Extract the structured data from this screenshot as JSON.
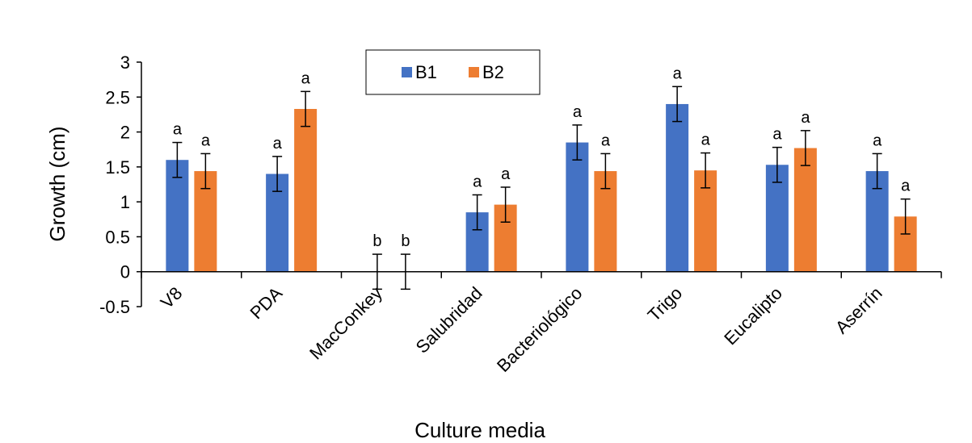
{
  "chart_data": {
    "type": "bar",
    "xlabel": "Culture media",
    "ylabel": "Growth (cm)",
    "ylim": [
      -0.5,
      3
    ],
    "yticks": [
      "3",
      "2.5",
      "2",
      "1.5",
      "1",
      "0.5",
      "0",
      "-0.5"
    ],
    "ytick_values": [
      3,
      2.5,
      2,
      1.5,
      1,
      0.5,
      0,
      -0.5
    ],
    "categories": [
      "V8",
      "PDA",
      "MacConkey",
      "Salubridad",
      "Bacteriológico",
      "Trigo",
      "Eucalipto",
      "Aserrín"
    ],
    "grid": false,
    "legend_position": "top-center",
    "series": [
      {
        "name": "B1",
        "color": "#4472C4",
        "values": [
          1.6,
          1.4,
          0,
          0.85,
          1.85,
          2.4,
          1.53,
          1.44
        ],
        "errors": [
          0.25,
          0.25,
          0.25,
          0.25,
          0.25,
          0.25,
          0.25,
          0.25
        ],
        "letters": [
          "a",
          "a",
          "b",
          "a",
          "a",
          "a",
          "a",
          "a"
        ]
      },
      {
        "name": "B2",
        "color": "#ED7D31",
        "values": [
          1.44,
          2.33,
          0,
          0.96,
          1.44,
          1.45,
          1.77,
          0.79
        ],
        "errors": [
          0.25,
          0.25,
          0.25,
          0.25,
          0.25,
          0.25,
          0.25,
          0.25
        ],
        "letters": [
          "a",
          "a",
          "b",
          "a",
          "a",
          "a",
          "a",
          "a"
        ]
      }
    ]
  }
}
